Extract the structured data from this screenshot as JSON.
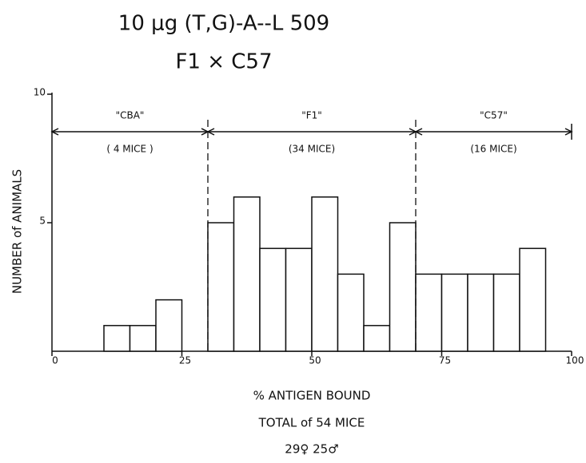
{
  "chart_data": {
    "type": "histogram",
    "title": "10 μg (T,G)-A--L 509",
    "subtitle": "F1 × C57",
    "x_label": "% ANTIGEN BOUND",
    "y_label": "NUMBER of ANIMALS",
    "footer": [
      "TOTAL of 54 MICE",
      "29♀    25♂"
    ],
    "bins": [
      10,
      15,
      20,
      25,
      30,
      35,
      40,
      45,
      50,
      55,
      60,
      65,
      70,
      75,
      80,
      85,
      90,
      95
    ],
    "counts": [
      1,
      1,
      2,
      0,
      5,
      6,
      4,
      4,
      6,
      3,
      1,
      5,
      3,
      3,
      3,
      3,
      4
    ],
    "color": "#ffffff",
    "xlim": [
      0,
      100
    ],
    "xticks": [
      0,
      25,
      50,
      75,
      100
    ],
    "ylim": [
      0,
      10
    ],
    "yticks": [
      5,
      10
    ],
    "regions": [
      {
        "label": "\"CBA\"",
        "note": "( 4 MICE )",
        "start": 0,
        "end": 30
      },
      {
        "label": "\"F1\"",
        "note": "(34 MICE)",
        "start": 30,
        "end": 70
      },
      {
        "label": "\"C57\"",
        "note": "(16 MICE)",
        "start": 70,
        "end": 100
      }
    ]
  }
}
